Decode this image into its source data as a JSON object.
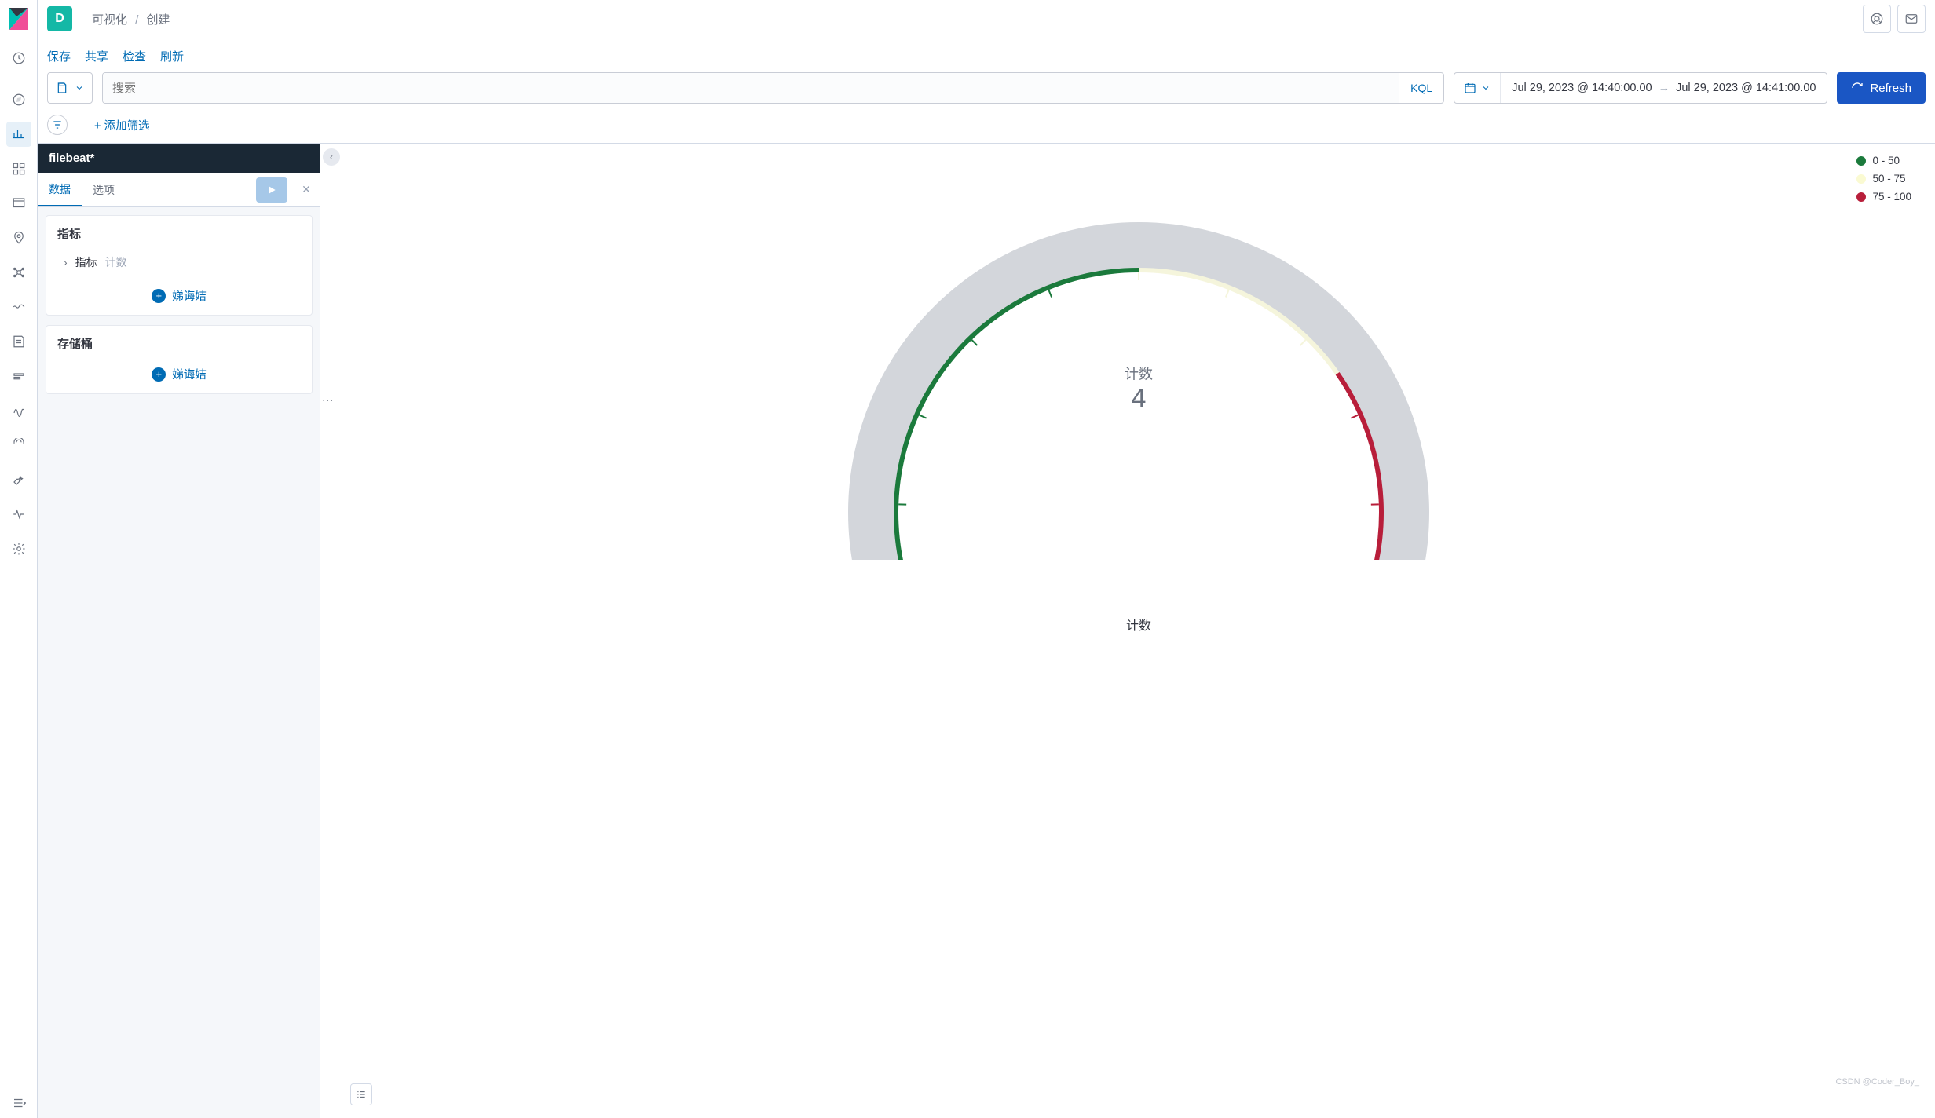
{
  "header": {
    "space_letter": "D",
    "breadcrumb": {
      "visualize": "可视化",
      "create": "创建"
    }
  },
  "toolbar": {
    "save": "保存",
    "share": "共享",
    "inspect": "检查",
    "refresh_cn": "刷新",
    "search_placeholder": "搜索",
    "kql": "KQL",
    "date_from": "Jul 29, 2023 @ 14:40:00.00",
    "date_to": "Jul 29, 2023 @ 14:41:00.00",
    "refresh": "Refresh",
    "add_filter": "+ 添加筛选"
  },
  "panel": {
    "title": "filebeat*",
    "tabs": {
      "data": "数据",
      "options": "选项"
    },
    "metrics": {
      "title": "指标",
      "row_label": "指标",
      "row_value": "计数",
      "add": "娣诲姞"
    },
    "buckets": {
      "title": "存储桶",
      "add": "娣诲姞"
    }
  },
  "gauge": {
    "type": "gauge",
    "value": 4,
    "max": 100,
    "center_label": "计数",
    "center_value": "4",
    "axis_label": "计数",
    "background_color": "#d3d6db",
    "ranges": [
      {
        "from": 0,
        "to": 50,
        "color": "#1b7a3c",
        "label": "0 - 50"
      },
      {
        "from": 50,
        "to": 75,
        "color": "#f5f5dc",
        "label": "50 - 75"
      },
      {
        "from": 75,
        "to": 100,
        "color": "#b81e3a",
        "label": "75 - 100"
      }
    ],
    "legend_colors": [
      "#1b7a3c",
      "#fafad2",
      "#b81e3a"
    ]
  },
  "watermark": "CSDN @Coder_Boy_"
}
